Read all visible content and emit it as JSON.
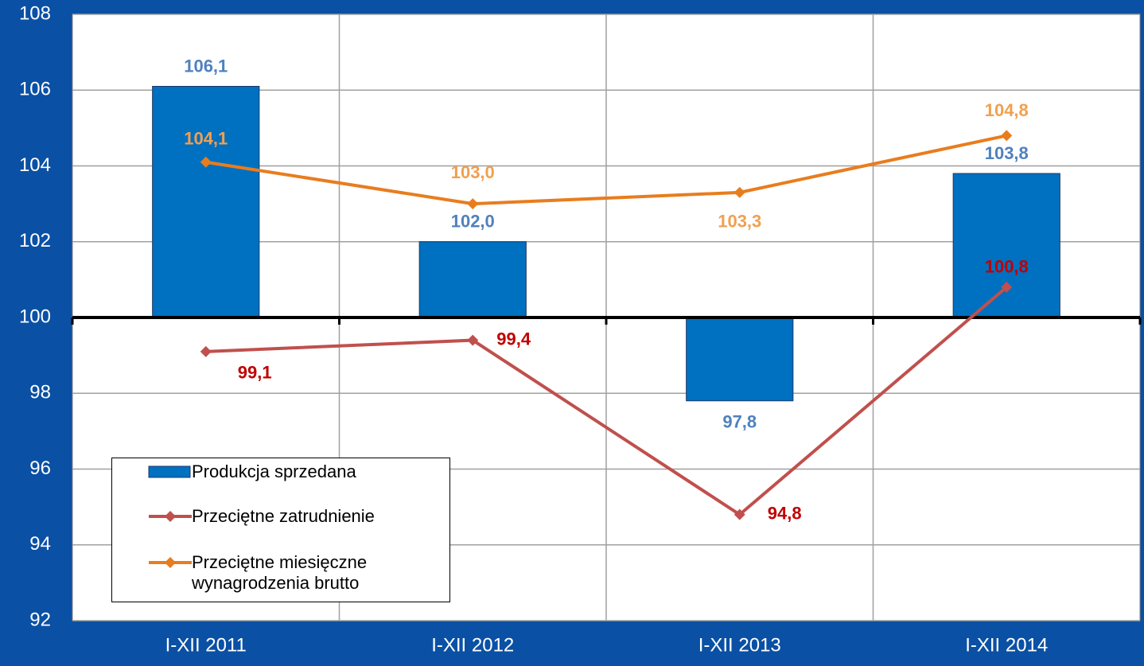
{
  "chart_data": {
    "type": "bar_line",
    "categories": [
      "I-XII 2011",
      "I-XII 2012",
      "I-XII 2013",
      "I-XII 2014"
    ],
    "series": [
      {
        "name": "Produkcja sprzedana",
        "type": "bar",
        "color": "#0070c0",
        "values": [
          106.1,
          102.0,
          97.8,
          103.8
        ],
        "value_labels": [
          "106,1",
          "102,0",
          "97,8",
          "103,8"
        ],
        "label_color": "#4f81bd"
      },
      {
        "name": "Przeciętne zatrudnienie",
        "type": "line",
        "color": "#c0504d",
        "values": [
          99.1,
          99.4,
          94.8,
          100.8
        ],
        "value_labels": [
          "99,1",
          "99,4",
          "94,8",
          "100,8"
        ],
        "label_color": "#c00000"
      },
      {
        "name": "Przeciętne miesięczne wynagrodzenia brutto",
        "type": "line",
        "color": "#e87d1e",
        "values": [
          104.1,
          103.0,
          103.3,
          104.8
        ],
        "value_labels": [
          "104,1",
          "103,0",
          "103,3",
          "104,8"
        ],
        "label_color": "#f0a050"
      }
    ],
    "ylim": [
      92,
      108
    ],
    "yticks": [
      92,
      94,
      96,
      98,
      100,
      102,
      104,
      106,
      108
    ],
    "x_axis_crossing": 100,
    "grid": true,
    "legend": "lower-left"
  }
}
